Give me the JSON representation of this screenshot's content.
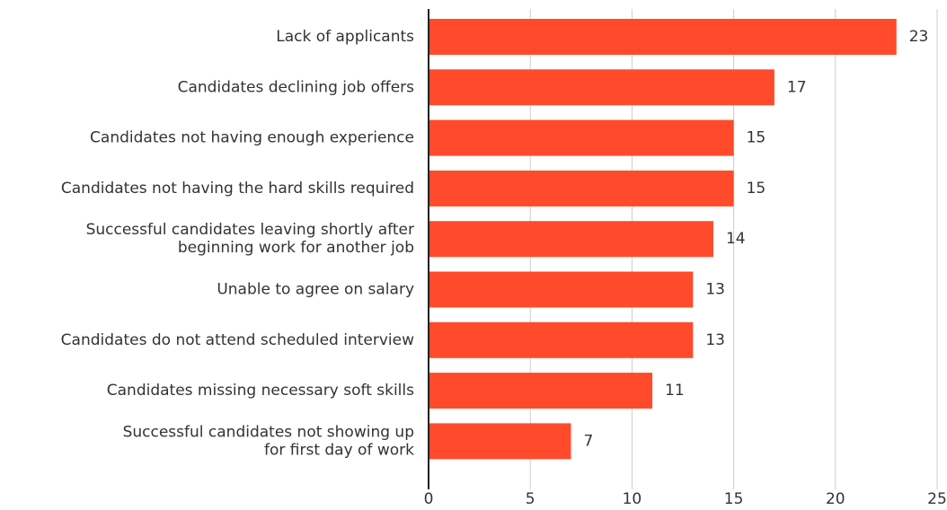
{
  "chart_data": {
    "type": "bar",
    "orientation": "horizontal",
    "categories": [
      "Lack of applicants",
      "Candidates declining job offers",
      "Candidates not having enough experience",
      "Candidates not having the hard skills required",
      "Successful candidates leaving shortly after\nbeginning work for another job",
      "Unable to agree on salary",
      "Candidates do not attend scheduled interview",
      "Candidates missing necessary soft skills",
      "Successful candidates not showing up\nfor first day of work"
    ],
    "values": [
      23,
      17,
      15,
      15,
      14,
      13,
      13,
      11,
      7
    ],
    "color": "#ff4b2b",
    "xlim": [
      0,
      25
    ],
    "xticks": [
      0,
      5,
      10,
      15,
      20,
      25
    ],
    "grid": true
  }
}
